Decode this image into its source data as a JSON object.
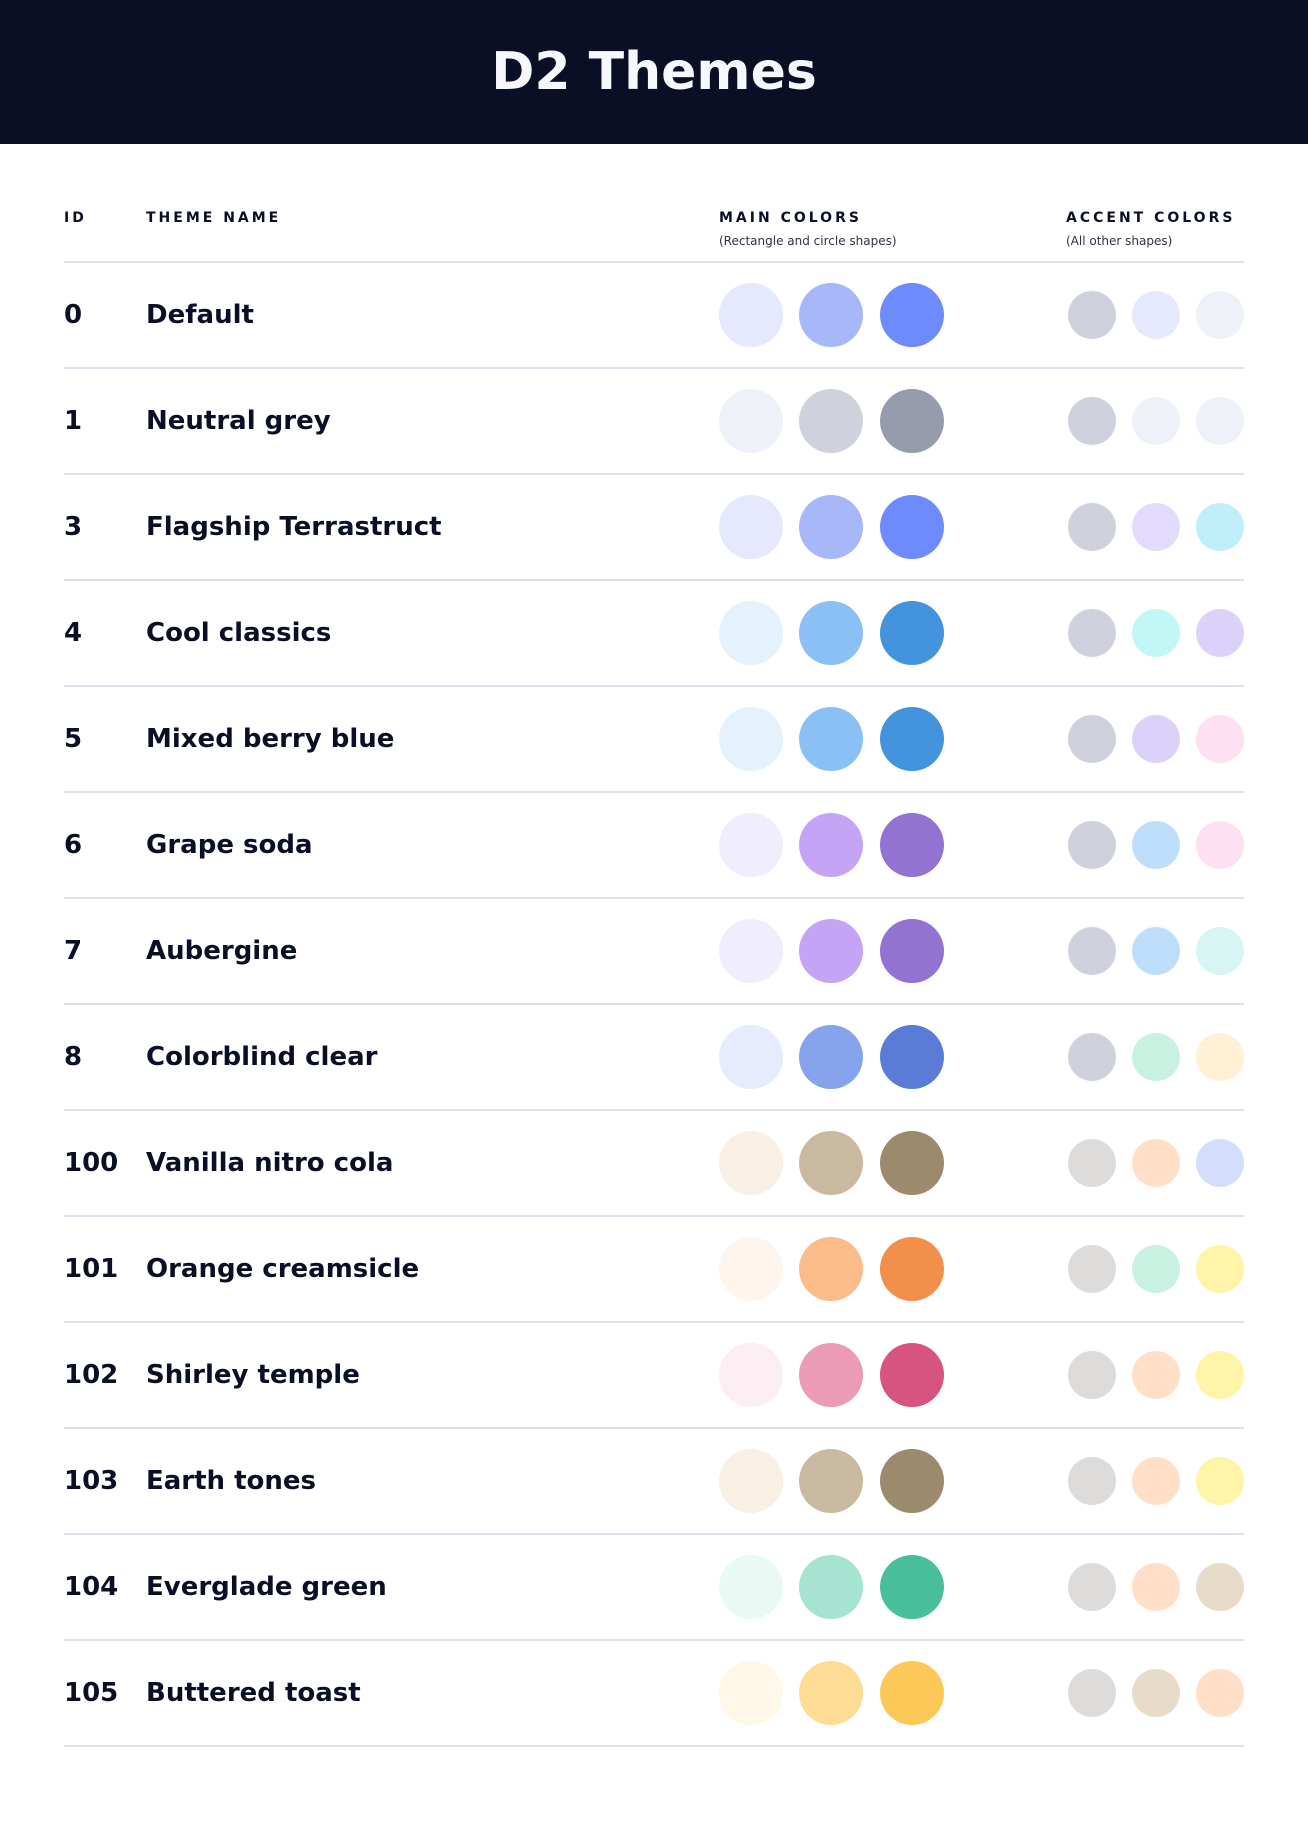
{
  "title": "D2 Themes",
  "columns": {
    "id": "ID",
    "name": "THEME NAME",
    "main": "MAIN COLORS",
    "main_sub": "(Rectangle and circle shapes)",
    "accent": "ACCENT COLORS",
    "accent_sub": "(All other shapes)"
  },
  "themes": [
    {
      "id": "0",
      "name": "Default",
      "main": [
        "#E6E9FD",
        "#A8B7F7",
        "#6D8BFC"
      ],
      "accent": [
        "#CFD2DD",
        "#E6E9FD",
        "#EEF1F8"
      ]
    },
    {
      "id": "1",
      "name": "Neutral grey",
      "main": [
        "#EEF1F8",
        "#CFD2DD",
        "#979CAC"
      ],
      "accent": [
        "#CFD2DD",
        "#EEF1F8",
        "#EEF1F8"
      ]
    },
    {
      "id": "3",
      "name": "Flagship Terrastruct",
      "main": [
        "#E6E9FD",
        "#A8B7F7",
        "#6D8BFC"
      ],
      "accent": [
        "#CFD2DD",
        "#E3DBFD",
        "#C1EEFB"
      ]
    },
    {
      "id": "4",
      "name": "Cool classics",
      "main": [
        "#E5F2FD",
        "#8AC0F4",
        "#4393DD"
      ],
      "accent": [
        "#CFD2DD",
        "#C1F8F6",
        "#DCD2F9"
      ]
    },
    {
      "id": "5",
      "name": "Mixed berry blue",
      "main": [
        "#E5F2FD",
        "#8AC0F4",
        "#4393DD"
      ],
      "accent": [
        "#CFD2DD",
        "#DCD2F9",
        "#FFDFF2"
      ]
    },
    {
      "id": "6",
      "name": "Grape soda",
      "main": [
        "#F0EDFD",
        "#C5A4F5",
        "#9373D2"
      ],
      "accent": [
        "#CFD2DD",
        "#BEDDFB",
        "#FFDFF2"
      ]
    },
    {
      "id": "7",
      "name": "Aubergine",
      "main": [
        "#F0EDFD",
        "#C5A4F5",
        "#9373D2"
      ],
      "accent": [
        "#CFD2DD",
        "#BEDDFB",
        "#D6F5F3"
      ]
    },
    {
      "id": "8",
      "name": "Colorblind clear",
      "main": [
        "#E6EBFD",
        "#87A3EB",
        "#5A7CD6"
      ],
      "accent": [
        "#CFD2DD",
        "#C9F1E2",
        "#FFF0D6"
      ]
    },
    {
      "id": "100",
      "name": "Vanilla nitro cola",
      "main": [
        "#F8EFE5",
        "#C9B9A0",
        "#9C8A6E"
      ],
      "accent": [
        "#DDDCDA",
        "#FFDFC8",
        "#D4DEFC"
      ]
    },
    {
      "id": "101",
      "name": "Orange creamsicle",
      "main": [
        "#FEF5EF",
        "#FBBC8B",
        "#F2904B"
      ],
      "accent": [
        "#DDDCDA",
        "#C9F1E2",
        "#FFF4A8"
      ]
    },
    {
      "id": "102",
      "name": "Shirley temple",
      "main": [
        "#FCEEF2",
        "#EB9BB6",
        "#D6547F"
      ],
      "accent": [
        "#DDDCDA",
        "#FFDFC8",
        "#FFF4A8"
      ]
    },
    {
      "id": "103",
      "name": "Earth tones",
      "main": [
        "#F8EFE5",
        "#C9B9A0",
        "#9C8A6E"
      ],
      "accent": [
        "#DDDCDA",
        "#FFDFC8",
        "#FFF4A8"
      ]
    },
    {
      "id": "104",
      "name": "Everglade green",
      "main": [
        "#E9FAF4",
        "#A6E3D1",
        "#48BE9A"
      ],
      "accent": [
        "#DDDCDA",
        "#FFDFC8",
        "#E7DBCA"
      ]
    },
    {
      "id": "105",
      "name": "Buttered toast",
      "main": [
        "#FFF7E8",
        "#FFDC94",
        "#FCC959"
      ],
      "accent": [
        "#DDDCDA",
        "#E7DBCA",
        "#FFDFC8"
      ]
    }
  ]
}
